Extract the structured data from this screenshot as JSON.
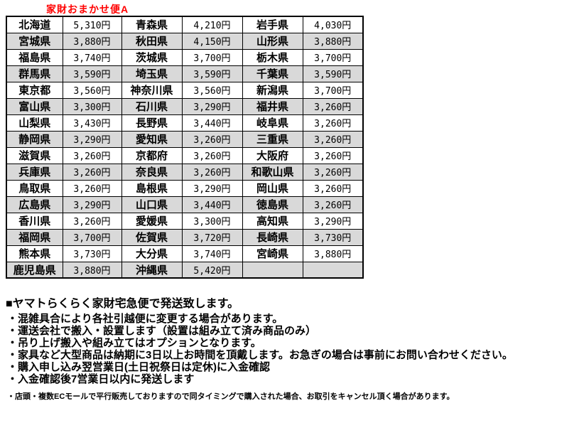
{
  "title": "家財おまかせ便A",
  "shipping_table": {
    "rows": [
      [
        "北海道",
        "5,310円",
        "青森県",
        "4,210円",
        "岩手県",
        "4,030円"
      ],
      [
        "宮城県",
        "3,880円",
        "秋田県",
        "4,150円",
        "山形県",
        "3,880円"
      ],
      [
        "福島県",
        "3,740円",
        "茨城県",
        "3,700円",
        "栃木県",
        "3,700円"
      ],
      [
        "群馬県",
        "3,590円",
        "埼玉県",
        "3,590円",
        "千葉県",
        "3,590円"
      ],
      [
        "東京都",
        "3,560円",
        "神奈川県",
        "3,560円",
        "新潟県",
        "3,700円"
      ],
      [
        "富山県",
        "3,300円",
        "石川県",
        "3,290円",
        "福井県",
        "3,260円"
      ],
      [
        "山梨県",
        "3,430円",
        "長野県",
        "3,440円",
        "岐阜県",
        "3,260円"
      ],
      [
        "静岡県",
        "3,290円",
        "愛知県",
        "3,260円",
        "三重県",
        "3,260円"
      ],
      [
        "滋賀県",
        "3,260円",
        "京都府",
        "3,260円",
        "大阪府",
        "3,260円"
      ],
      [
        "兵庫県",
        "3,260円",
        "奈良県",
        "3,260円",
        "和歌山県",
        "3,260円"
      ],
      [
        "鳥取県",
        "3,260円",
        "島根県",
        "3,290円",
        "岡山県",
        "3,260円"
      ],
      [
        "広島県",
        "3,290円",
        "山口県",
        "3,440円",
        "徳島県",
        "3,260円"
      ],
      [
        "香川県",
        "3,260円",
        "愛媛県",
        "3,300円",
        "高知県",
        "3,290円"
      ],
      [
        "福岡県",
        "3,700円",
        "佐賀県",
        "3,720円",
        "長崎県",
        "3,730円"
      ],
      [
        "熊本県",
        "3,730円",
        "大分県",
        "3,740円",
        "宮崎県",
        "3,880円"
      ],
      [
        "鹿児島県",
        "3,880円",
        "沖縄県",
        "5,420円",
        "",
        ""
      ]
    ]
  },
  "notes": {
    "heading": "■ヤマトらくらく家財宅急便で発送致します。",
    "bullets": [
      "・混雑具合により各社引越便に変更する場合があります。",
      "・運送会社で搬入・設置します（設置は組み立て済み商品のみ）",
      "・吊り上げ搬入や組み立てはオプションとなります。",
      "・家具など大型商品は納期に3日以上お時間を頂戴します。お急ぎの場合は事前にお問い合わせください。",
      "・購入申し込み翌営業日(土日祝祭日は定休)に入金確認",
      "・入金確認後7営業日以内に発送します"
    ],
    "small_note": "・店頭・複数ECモールで平行販売しておりますので同タイミングで購入された場合、お取引をキャンセル頂く場合があります。"
  },
  "colors": {
    "title_red": "#FF0000",
    "row_shade": "#D9D9D9",
    "border": "#000000"
  }
}
